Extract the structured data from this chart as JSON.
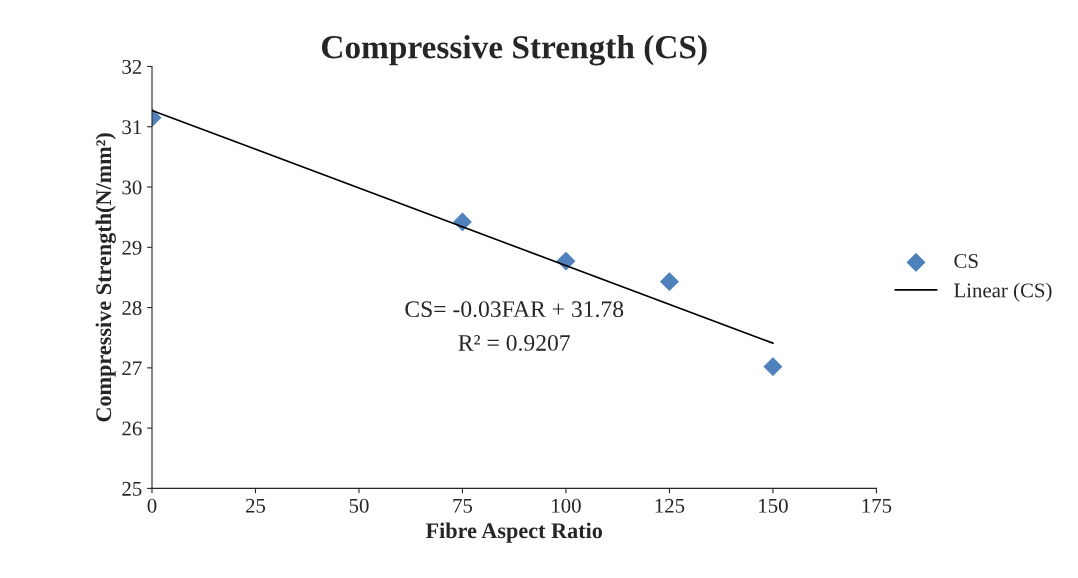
{
  "chart_data": {
    "type": "scatter",
    "title": "Compressive Strength (CS)",
    "xlabel": "Fibre Aspect Ratio",
    "ylabel": "Compressive Strength(N/mm²)",
    "x": [
      0,
      75,
      100,
      125,
      150
    ],
    "series": [
      {
        "name": "CS",
        "color": "#4f81bd",
        "marker": "diamond",
        "values": [
          31.15,
          29.42,
          28.77,
          28.43,
          27.02
        ]
      },
      {
        "name": "Linear (CS)",
        "type": "line",
        "color": "#000000",
        "x": [
          0,
          150
        ],
        "values": [
          31.27,
          27.41
        ],
        "marker": "none",
        "line_style": "solid"
      }
    ],
    "annotations": [
      "CS= -0.03FAR + 31.78",
      "R² = 0.9207"
    ],
    "xlim": [
      0,
      175
    ],
    "xticks": [
      0,
      25,
      50,
      75,
      100,
      125,
      150,
      175
    ],
    "ylim": [
      25,
      32
    ],
    "yticks": [
      25,
      26,
      27,
      28,
      29,
      30,
      31,
      32
    ],
    "grid": false,
    "legend": "right"
  }
}
